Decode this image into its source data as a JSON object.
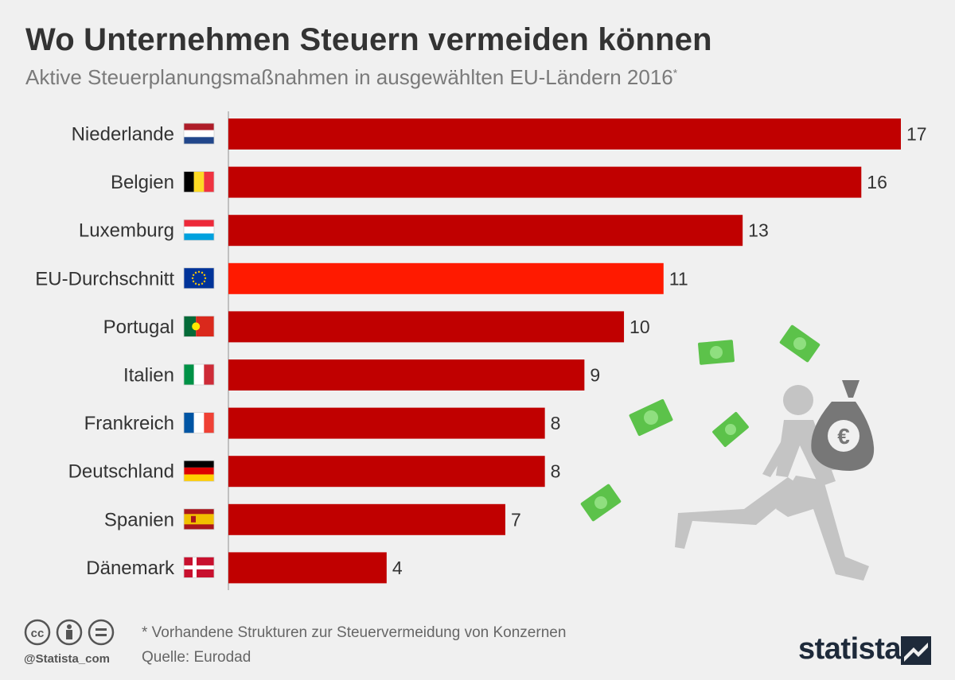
{
  "title": "Wo Unternehmen Steuern vermeiden können",
  "subtitle": "Aktive Steuerplanungsmaßnahmen in ausgewählten EU-Ländern 2016",
  "subtitle_mark": "*",
  "footnote": "* Vorhandene Strukturen zur Steuervermeidung von Konzernen",
  "source": "Quelle: Eurodad",
  "handle": "@Statista_com",
  "brand": "statista",
  "colors": {
    "bar": "#c00000",
    "bar_highlight": "#ff1a00",
    "money": "#5cc24a",
    "figure": "#c4c4c4"
  },
  "chart_data": {
    "type": "bar",
    "orientation": "horizontal",
    "categories": [
      "Niederlande",
      "Belgien",
      "Luxemburg",
      "EU-Durchschnitt",
      "Portugal",
      "Italien",
      "Frankreich",
      "Deutschland",
      "Spanien",
      "Dänemark"
    ],
    "values": [
      17,
      16,
      13,
      11,
      10,
      9,
      8,
      8,
      7,
      4
    ],
    "highlight": "EU-Durchschnitt",
    "flags": [
      "nl",
      "be",
      "lu",
      "eu",
      "pt",
      "it",
      "fr",
      "de",
      "es",
      "dk"
    ],
    "xlim": [
      0,
      17
    ],
    "grid": false,
    "legend": "none"
  }
}
